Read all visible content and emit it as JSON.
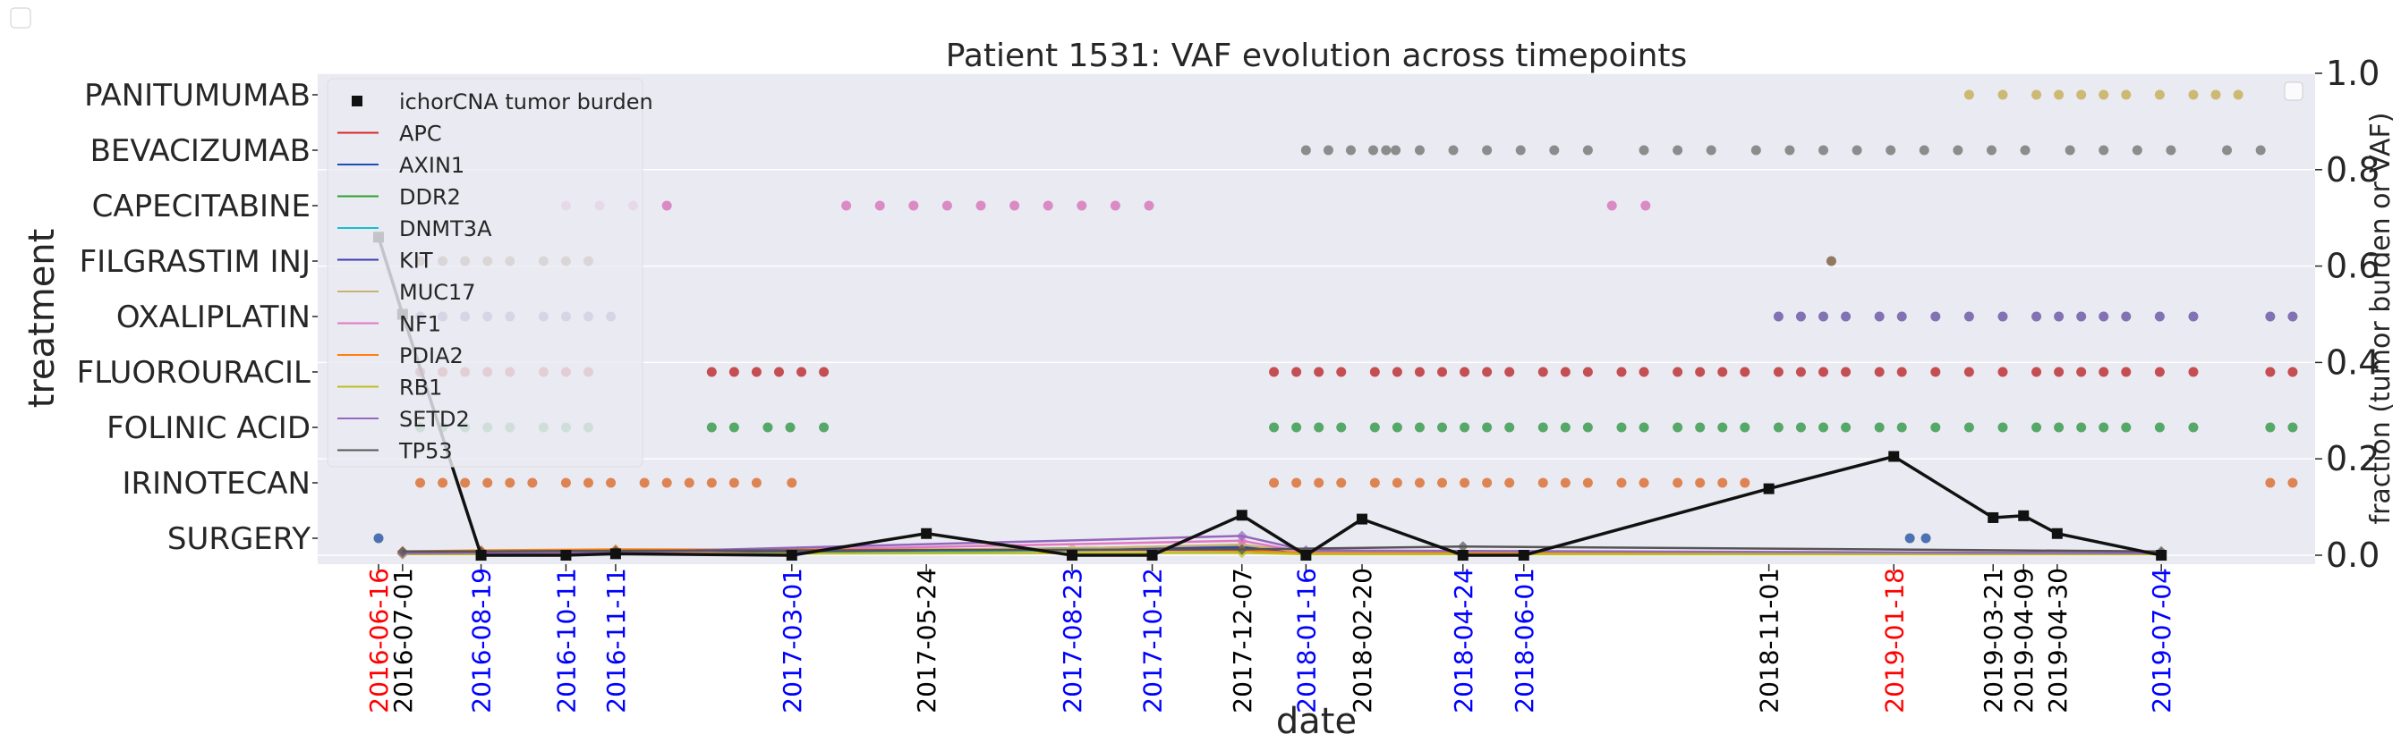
{
  "chart_data": {
    "type": "scatter",
    "title": "Patient 1531: VAF evolution across timepoints",
    "xlabel": "date",
    "ylabel": "treatment",
    "ylabel_right": "fraction (tumor burden or VAF)",
    "x_range": [
      "2016-05-09",
      "2019-10-08"
    ],
    "y_right_range": [
      0,
      1.0
    ],
    "y_right_ticks": [
      0.0,
      0.2,
      0.4,
      0.6,
      0.8,
      1.0
    ],
    "y_right_tick_labels": [
      "0.0",
      "0.2",
      "0.4",
      "0.6",
      "0.8",
      "1.0"
    ],
    "grid": true,
    "legend_position": "upper-left",
    "treatments": [
      "SURGERY",
      "IRINOTECAN",
      "FOLINIC ACID",
      "FLUOROURACIL",
      "OXALIPLATIN",
      "FILGRASTIM INJ",
      "CAPECITABINE",
      "BEVACIZUMAB",
      "PANITUMUMAB"
    ],
    "treatment_colors": {
      "SURGERY": "#4c72b0",
      "IRINOTECAN": "#dd8452",
      "FOLINIC ACID": "#55a868",
      "FLUOROURACIL": "#c44e52",
      "OXALIPLATIN": "#8172b3",
      "FILGRASTIM INJ": "#937860",
      "CAPECITABINE": "#da8bc3",
      "BEVACIZUMAB": "#8c8c8c",
      "PANITUMUMAB": "#ccb974"
    },
    "treatment_events": {
      "SURGERY": [
        "2016-06-16",
        "2019-01-28",
        "2019-02-07"
      ],
      "IRINOTECAN": [
        "2016-07-12",
        "2016-07-26",
        "2016-08-09",
        "2016-08-23",
        "2016-09-06",
        "2016-09-20",
        "2016-10-11",
        "2016-10-25",
        "2016-11-08",
        "2016-11-29",
        "2016-12-13",
        "2016-12-27",
        "2017-01-10",
        "2017-01-24",
        "2017-02-07",
        "2017-03-01",
        "2017-12-27",
        "2018-01-10",
        "2018-01-24",
        "2018-02-07",
        "2018-02-28",
        "2018-03-14",
        "2018-03-28",
        "2018-04-11",
        "2018-04-25",
        "2018-05-09",
        "2018-05-23",
        "2018-06-13",
        "2018-06-27",
        "2018-07-11",
        "2018-08-01",
        "2018-08-15",
        "2018-09-05",
        "2018-09-19",
        "2018-10-03",
        "2018-10-17",
        "2019-09-10",
        "2019-09-24"
      ],
      "FOLINIC ACID": [
        "2016-07-12",
        "2016-07-26",
        "2016-08-09",
        "2016-08-23",
        "2016-09-06",
        "2016-09-27",
        "2016-10-11",
        "2016-10-25",
        "2017-01-10",
        "2017-01-24",
        "2017-02-14",
        "2017-02-28",
        "2017-03-21",
        "2017-12-27",
        "2018-01-10",
        "2018-01-24",
        "2018-02-07",
        "2018-02-28",
        "2018-03-14",
        "2018-03-28",
        "2018-04-11",
        "2018-04-25",
        "2018-05-09",
        "2018-05-23",
        "2018-06-13",
        "2018-06-27",
        "2018-07-11",
        "2018-08-01",
        "2018-08-15",
        "2018-09-05",
        "2018-09-19",
        "2018-10-03",
        "2018-10-17",
        "2018-11-07",
        "2018-11-21",
        "2018-12-05",
        "2018-12-19",
        "2019-01-09",
        "2019-01-23",
        "2019-02-13",
        "2019-03-06",
        "2019-03-27",
        "2019-04-17",
        "2019-05-01",
        "2019-05-15",
        "2019-05-29",
        "2019-06-12",
        "2019-07-03",
        "2019-07-24",
        "2019-09-10",
        "2019-09-24"
      ],
      "FLUOROURACIL": [
        "2016-07-12",
        "2016-07-26",
        "2016-08-09",
        "2016-08-23",
        "2016-09-06",
        "2016-09-27",
        "2016-10-11",
        "2016-10-25",
        "2017-01-10",
        "2017-01-24",
        "2017-02-07",
        "2017-02-21",
        "2017-03-07",
        "2017-03-21",
        "2017-12-27",
        "2018-01-10",
        "2018-01-24",
        "2018-02-07",
        "2018-02-28",
        "2018-03-14",
        "2018-03-28",
        "2018-04-11",
        "2018-04-25",
        "2018-05-09",
        "2018-05-23",
        "2018-06-13",
        "2018-06-27",
        "2018-07-11",
        "2018-08-01",
        "2018-08-15",
        "2018-09-05",
        "2018-09-19",
        "2018-10-03",
        "2018-10-17",
        "2018-11-07",
        "2018-11-21",
        "2018-12-05",
        "2018-12-19",
        "2019-01-09",
        "2019-01-23",
        "2019-02-13",
        "2019-03-06",
        "2019-03-27",
        "2019-04-17",
        "2019-05-01",
        "2019-05-15",
        "2019-05-29",
        "2019-06-12",
        "2019-07-03",
        "2019-07-24",
        "2019-09-10",
        "2019-09-24"
      ],
      "OXALIPLATIN": [
        "2016-07-12",
        "2016-07-26",
        "2016-08-09",
        "2016-08-23",
        "2016-09-06",
        "2016-09-27",
        "2016-10-11",
        "2016-10-25",
        "2016-11-08",
        "2018-11-07",
        "2018-11-21",
        "2018-12-05",
        "2018-12-19",
        "2019-01-09",
        "2019-01-23",
        "2019-02-13",
        "2019-03-06",
        "2019-03-27",
        "2019-04-17",
        "2019-05-01",
        "2019-05-15",
        "2019-05-29",
        "2019-06-12",
        "2019-07-03",
        "2019-07-24",
        "2019-09-10",
        "2019-09-24"
      ],
      "FILGRASTIM INJ": [
        "2016-07-12",
        "2016-07-26",
        "2016-08-09",
        "2016-08-23",
        "2016-09-06",
        "2016-09-27",
        "2016-10-11",
        "2016-10-25",
        "2018-12-10"
      ],
      "CAPECITABINE": [
        "2016-10-11",
        "2016-11-01",
        "2016-11-22",
        "2016-12-13",
        "2017-04-04",
        "2017-04-25",
        "2017-05-16",
        "2017-06-06",
        "2017-06-27",
        "2017-07-18",
        "2017-08-08",
        "2017-08-29",
        "2017-09-19",
        "2017-10-10",
        "2018-07-26",
        "2018-08-16"
      ],
      "BEVACIZUMAB": [
        "2018-03-07",
        "2018-03-28",
        "2018-04-18",
        "2018-05-09",
        "2018-05-30",
        "2018-06-20",
        "2018-07-11",
        "2018-08-15",
        "2018-09-05",
        "2018-09-26",
        "2018-10-24",
        "2018-11-14",
        "2018-12-05",
        "2018-12-26",
        "2019-01-16",
        "2019-02-06",
        "2019-02-27",
        "2019-03-20",
        "2019-04-10",
        "2019-05-08",
        "2019-05-29",
        "2019-06-19",
        "2019-07-10",
        "2019-08-14",
        "2019-09-04",
        "2018-01-16",
        "2018-01-30",
        "2018-02-13",
        "2018-02-27",
        "2018-03-13"
      ],
      "PANITUMUMAB": [
        "2019-03-06",
        "2019-03-27",
        "2019-04-17",
        "2019-05-01",
        "2019-05-15",
        "2019-05-29",
        "2019-06-12",
        "2019-07-03",
        "2019-07-24",
        "2019-08-07",
        "2019-08-21"
      ]
    },
    "tumor_burden": {
      "name": "ichorCNA tumor burden",
      "color": "#111111",
      "x": [
        "2016-06-16",
        "2016-07-01",
        "2016-08-19",
        "2016-10-11",
        "2016-11-11",
        "2017-03-01",
        "2017-05-24",
        "2017-08-23",
        "2017-10-12",
        "2017-12-07",
        "2018-01-16",
        "2018-02-20",
        "2018-04-24",
        "2018-06-01",
        "2018-11-01",
        "2019-01-18",
        "2019-03-21",
        "2019-04-09",
        "2019-04-30",
        "2019-07-04"
      ],
      "values": [
        0.66,
        0.5,
        0.0,
        0.0,
        0.003,
        0.0,
        0.045,
        0.0,
        0.0,
        0.083,
        0.0,
        0.075,
        0.0,
        0.0,
        0.138,
        0.205,
        0.078,
        0.082,
        0.045,
        0.0
      ]
    },
    "vaf_series": [
      {
        "name": "APC",
        "color": "#d62728",
        "x": [
          "2016-07-01",
          "2016-08-19",
          "2016-11-11",
          "2017-03-01",
          "2017-12-07",
          "2018-01-16",
          "2019-07-04"
        ],
        "values": [
          0.005,
          0.006,
          0.007,
          0.005,
          0.02,
          0.005,
          0.004
        ]
      },
      {
        "name": "AXIN1",
        "color": "#1f4fb4",
        "x": [
          "2016-07-01",
          "2016-08-19",
          "2016-11-11",
          "2017-12-07",
          "2018-01-16",
          "2019-07-04"
        ],
        "values": [
          0.003,
          0.003,
          0.004,
          0.015,
          0.004,
          0.003
        ]
      },
      {
        "name": "DDR2",
        "color": "#2ca02c",
        "x": [
          "2016-07-01",
          "2016-08-19",
          "2016-11-11",
          "2017-12-07",
          "2018-01-16",
          "2019-07-04"
        ],
        "values": [
          0.004,
          0.004,
          0.005,
          0.018,
          0.004,
          0.003
        ]
      },
      {
        "name": "DNMT3A",
        "color": "#17becf",
        "x": [
          "2016-07-01",
          "2016-08-19",
          "2016-11-11",
          "2017-12-07",
          "2018-01-16",
          "2019-07-04"
        ],
        "values": [
          0.003,
          0.003,
          0.004,
          0.012,
          0.003,
          0.003
        ]
      },
      {
        "name": "KIT",
        "color": "#3b3bb3",
        "x": [
          "2016-07-01",
          "2016-08-19",
          "2016-11-11",
          "2017-12-07",
          "2018-01-16",
          "2019-07-04"
        ],
        "values": [
          0.004,
          0.004,
          0.005,
          0.016,
          0.005,
          0.004
        ]
      },
      {
        "name": "MUC17",
        "color": "#c8b273",
        "x": [
          "2016-07-01",
          "2016-08-19",
          "2016-11-11",
          "2017-08-23",
          "2017-12-07",
          "2018-01-16",
          "2019-07-04"
        ],
        "values": [
          0.006,
          0.006,
          0.008,
          0.014,
          0.022,
          0.006,
          0.005
        ]
      },
      {
        "name": "NF1",
        "color": "#e377c2",
        "x": [
          "2016-07-01",
          "2016-08-19",
          "2016-11-11",
          "2017-12-07",
          "2018-01-16",
          "2019-07-04"
        ],
        "values": [
          0.003,
          0.004,
          0.004,
          0.03,
          0.006,
          0.003
        ]
      },
      {
        "name": "PDIA2",
        "color": "#ff7f0e",
        "x": [
          "2016-07-01",
          "2016-08-19",
          "2016-11-11",
          "2017-12-07",
          "2018-01-16",
          "2019-07-04"
        ],
        "values": [
          0.008,
          0.01,
          0.012,
          0.01,
          0.004,
          0.004
        ]
      },
      {
        "name": "RB1",
        "color": "#bcbd22",
        "x": [
          "2016-07-01",
          "2016-08-19",
          "2016-11-11",
          "2017-12-07",
          "2018-01-16",
          "2019-07-04"
        ],
        "values": [
          0.002,
          0.002,
          0.003,
          0.005,
          0.002,
          0.002
        ]
      },
      {
        "name": "SETD2",
        "color": "#9467bd",
        "x": [
          "2016-07-01",
          "2016-08-19",
          "2016-11-11",
          "2017-12-07",
          "2018-01-16",
          "2019-07-04"
        ],
        "values": [
          0.004,
          0.005,
          0.006,
          0.04,
          0.01,
          0.004
        ]
      },
      {
        "name": "TP53",
        "color": "#555555",
        "x": [
          "2016-07-01",
          "2016-08-19",
          "2016-11-11",
          "2017-12-07",
          "2018-04-24",
          "2019-07-04"
        ],
        "values": [
          0.008,
          0.008,
          0.009,
          0.012,
          0.018,
          0.008
        ]
      }
    ],
    "date_ticks": [
      {
        "label": "2016-06-16",
        "color": "#ff0000"
      },
      {
        "label": "2016-07-01",
        "color": "#000000"
      },
      {
        "label": "2016-08-19",
        "color": "#0000ff"
      },
      {
        "label": "2016-10-11",
        "color": "#0000ff"
      },
      {
        "label": "2016-11-11",
        "color": "#0000ff"
      },
      {
        "label": "2017-03-01",
        "color": "#0000ff"
      },
      {
        "label": "2017-05-24",
        "color": "#000000"
      },
      {
        "label": "2017-08-23",
        "color": "#0000ff"
      },
      {
        "label": "2017-10-12",
        "color": "#0000ff"
      },
      {
        "label": "2017-12-07",
        "color": "#000000"
      },
      {
        "label": "2018-01-16",
        "color": "#0000ff"
      },
      {
        "label": "2018-02-20",
        "color": "#000000"
      },
      {
        "label": "2018-04-24",
        "color": "#0000ff"
      },
      {
        "label": "2018-06-01",
        "color": "#0000ff"
      },
      {
        "label": "2018-11-01",
        "color": "#000000"
      },
      {
        "label": "2019-01-18",
        "color": "#ff0000"
      },
      {
        "label": "2019-03-21",
        "color": "#000000"
      },
      {
        "label": "2019-04-09",
        "color": "#000000"
      },
      {
        "label": "2019-04-30",
        "color": "#000000"
      },
      {
        "label": "2019-07-04",
        "color": "#0000ff"
      }
    ]
  }
}
